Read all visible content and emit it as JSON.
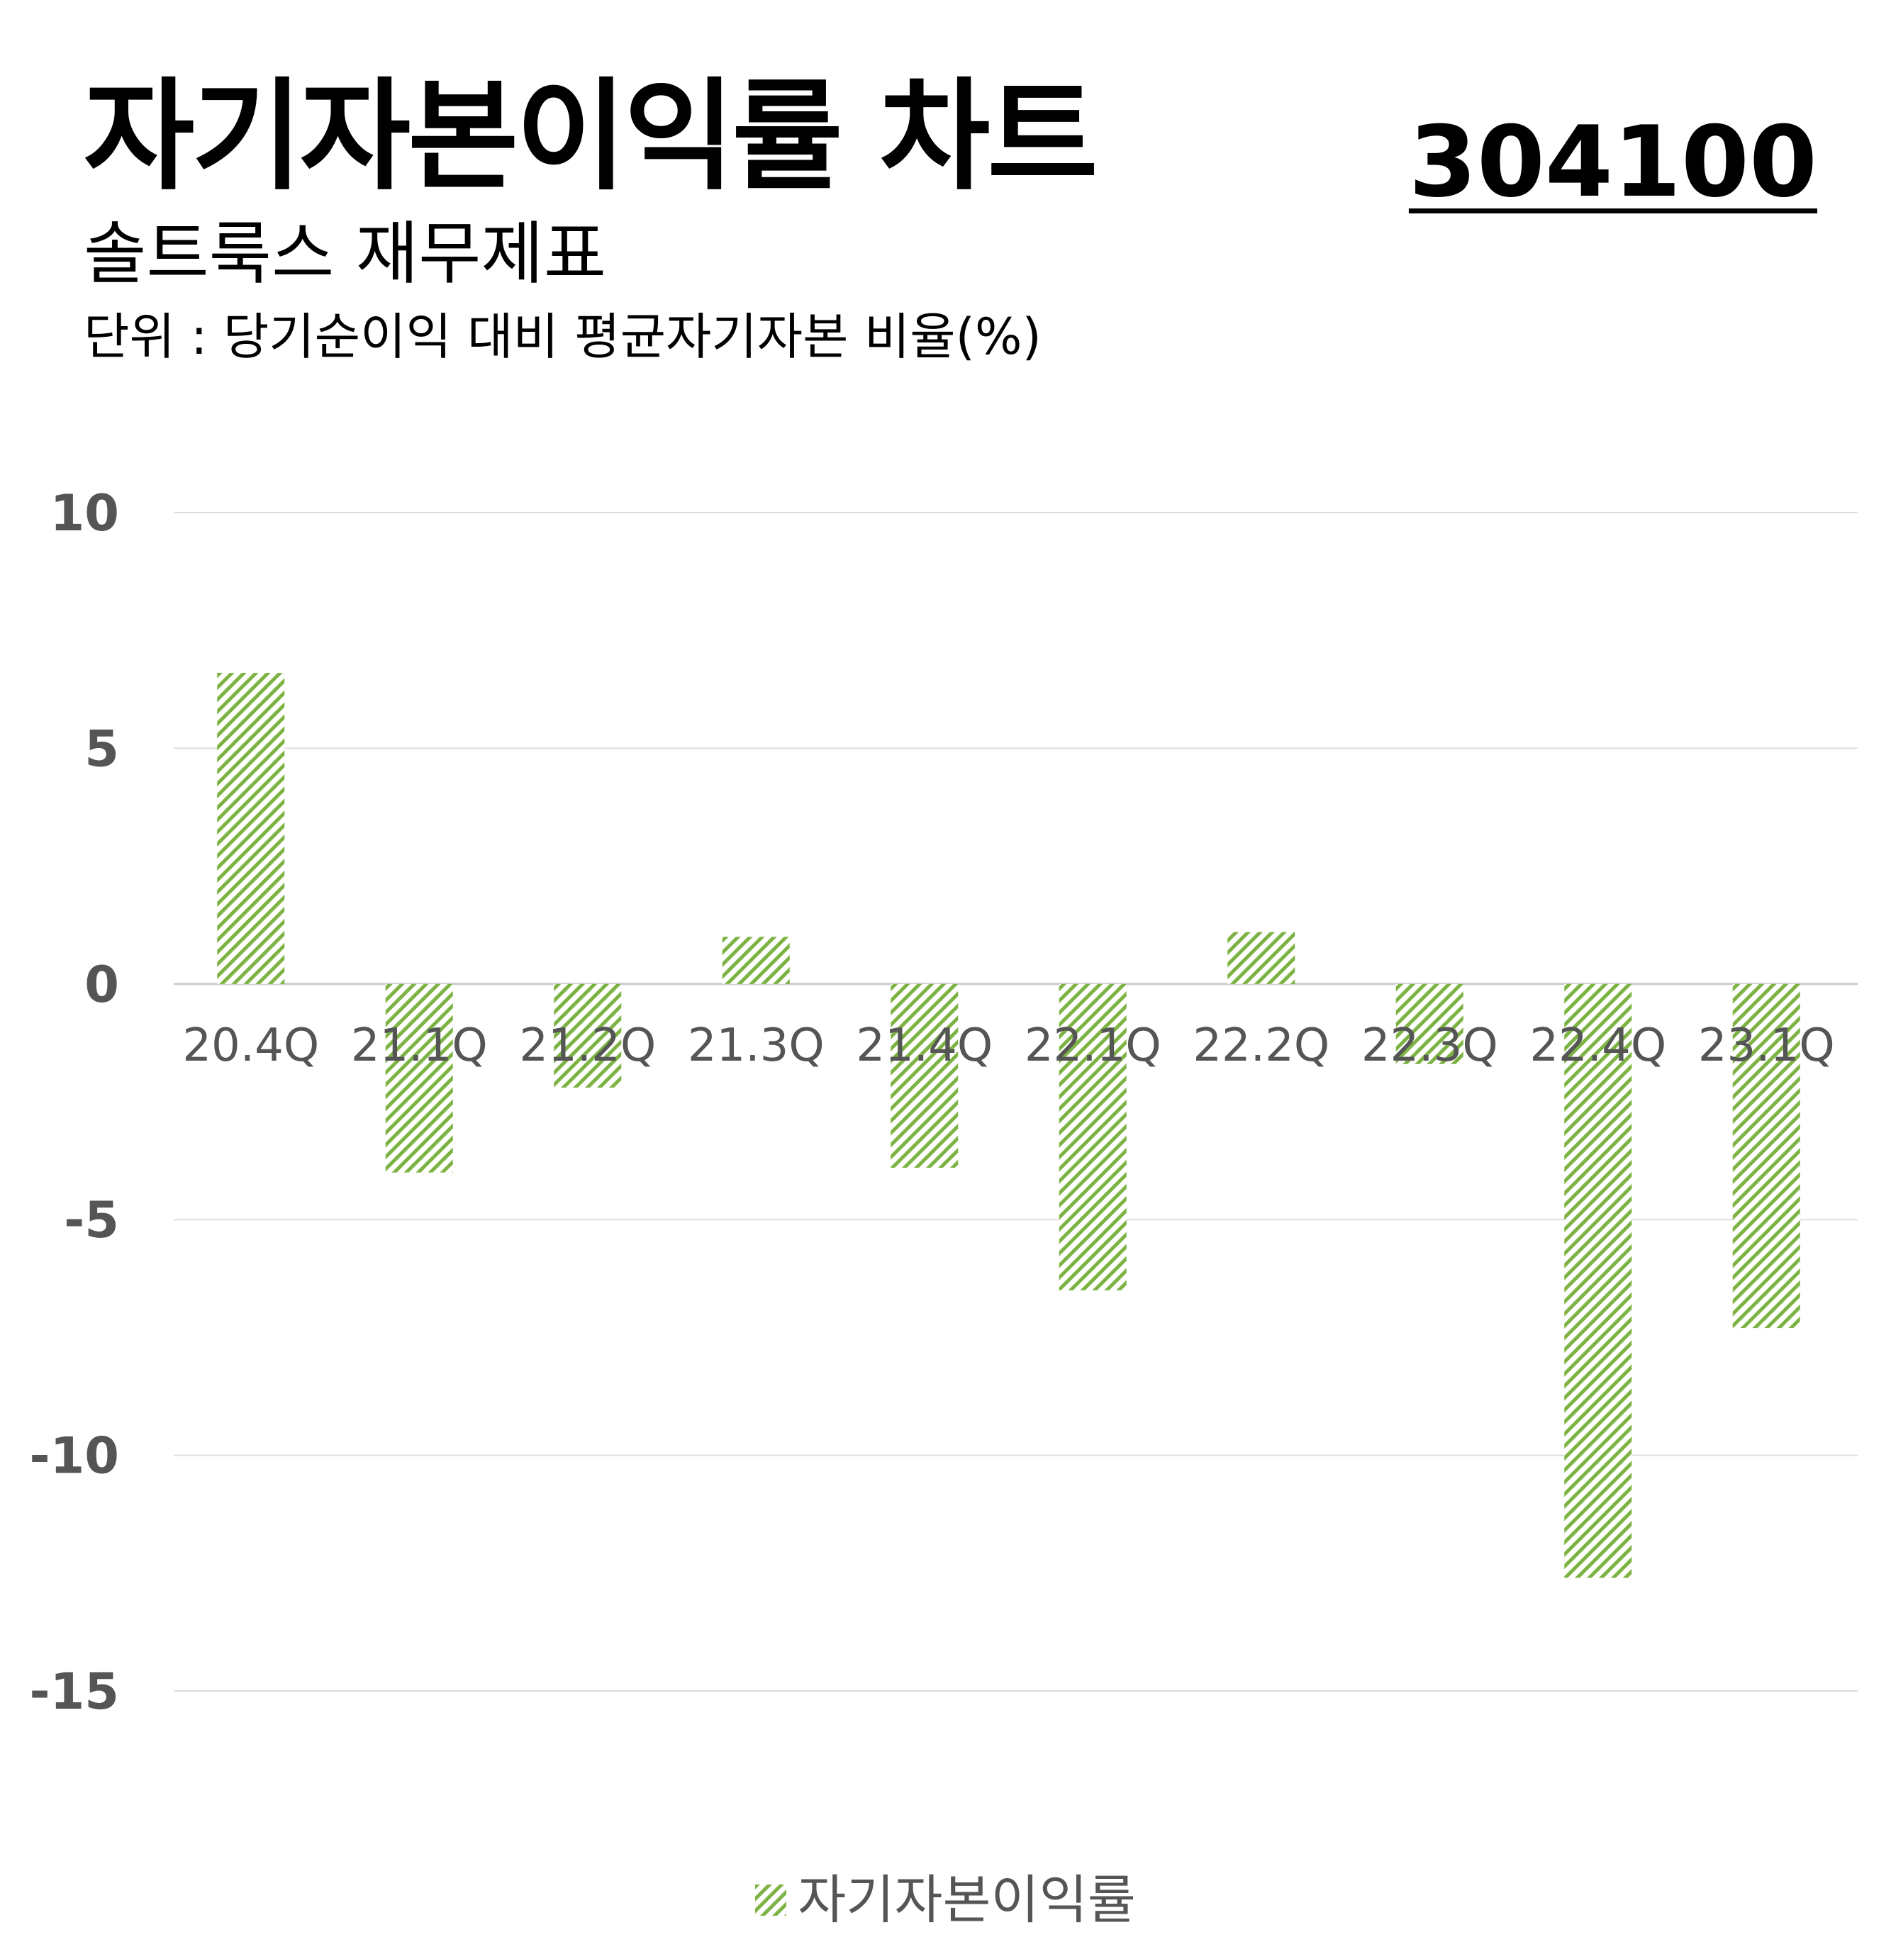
{
  "header": {
    "title": "자기자본이익률 차트",
    "code": "304100",
    "subtitle": "솔트룩스 재무제표",
    "unit": "단위 : 당기순이익 대비 평균자기자본 비율(%)"
  },
  "chart_data": {
    "type": "bar",
    "categories": [
      "20.4Q",
      "21.1Q",
      "21.2Q",
      "21.3Q",
      "21.4Q",
      "22.1Q",
      "22.2Q",
      "22.3Q",
      "22.4Q",
      "23.1Q"
    ],
    "series": [
      {
        "name": "자기자본이익률",
        "values": [
          6.6,
          -4.0,
          -2.2,
          1.0,
          -3.9,
          -6.5,
          1.1,
          -1.7,
          -12.6,
          -7.3
        ]
      }
    ],
    "ylim": [
      -15,
      10
    ],
    "yticks": [
      10,
      5,
      0,
      -5,
      -10,
      -15
    ],
    "grid": true,
    "legend_position": "bottom-center",
    "colors": {
      "bar": "#7cb342",
      "grid": "#dddddd",
      "axis_text": "#555555",
      "zero_line": "#cccccc"
    }
  }
}
